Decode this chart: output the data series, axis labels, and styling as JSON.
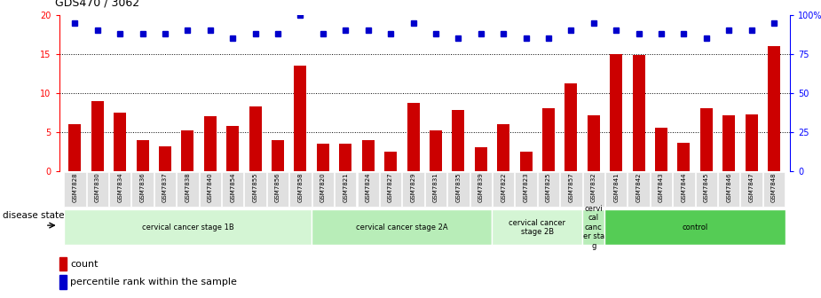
{
  "title": "GDS470 / 3062",
  "samples": [
    "GSM7828",
    "GSM7830",
    "GSM7834",
    "GSM7836",
    "GSM7837",
    "GSM7838",
    "GSM7840",
    "GSM7854",
    "GSM7855",
    "GSM7856",
    "GSM7858",
    "GSM7820",
    "GSM7821",
    "GSM7824",
    "GSM7827",
    "GSM7829",
    "GSM7831",
    "GSM7835",
    "GSM7839",
    "GSM7822",
    "GSM7823",
    "GSM7825",
    "GSM7857",
    "GSM7832",
    "GSM7841",
    "GSM7842",
    "GSM7843",
    "GSM7844",
    "GSM7845",
    "GSM7846",
    "GSM7847",
    "GSM7848"
  ],
  "counts": [
    6.0,
    9.0,
    7.5,
    4.0,
    3.2,
    5.2,
    7.0,
    5.8,
    8.3,
    4.0,
    13.5,
    3.5,
    3.5,
    4.0,
    2.5,
    8.7,
    5.2,
    7.9,
    3.1,
    6.0,
    2.5,
    8.1,
    11.3,
    7.2,
    15.0,
    14.9,
    5.6,
    3.6,
    8.1,
    7.2,
    7.3,
    16.0
  ],
  "percentile_ranks": [
    95,
    90,
    88,
    88,
    88,
    90,
    90,
    85,
    88,
    88,
    100,
    88,
    90,
    90,
    88,
    95,
    88,
    85,
    88,
    88,
    85,
    85,
    90,
    95,
    90,
    88,
    88,
    88,
    85,
    90,
    90,
    95
  ],
  "bar_color": "#cc0000",
  "dot_color": "#0000cc",
  "ylim_left": [
    0,
    20
  ],
  "ylim_right": [
    0,
    100
  ],
  "yticks_left": [
    0,
    5,
    10,
    15,
    20
  ],
  "yticks_right": [
    0,
    25,
    50,
    75,
    100
  ],
  "ytick_labels_right": [
    "0",
    "25",
    "50",
    "75",
    "100%"
  ],
  "groups": [
    {
      "label": "cervical cancer stage 1B",
      "start": 0,
      "end": 11,
      "color": "#d4f5d4"
    },
    {
      "label": "cervical cancer stage 2A",
      "start": 11,
      "end": 19,
      "color": "#b8edb8"
    },
    {
      "label": "cervical cancer\nstage 2B",
      "start": 19,
      "end": 23,
      "color": "#d4f5d4"
    },
    {
      "label": "cervi\ncal\ncanc\ner sta\ng",
      "start": 23,
      "end": 24,
      "color": "#b8edb8"
    },
    {
      "label": "control",
      "start": 24,
      "end": 32,
      "color": "#55cc55"
    }
  ],
  "disease_state_label": "disease state",
  "legend_count_label": "count",
  "legend_pct_label": "percentile rank within the sample",
  "dotted_lines": [
    5,
    10,
    15
  ],
  "xtick_bg_color": "#e0e0e0"
}
